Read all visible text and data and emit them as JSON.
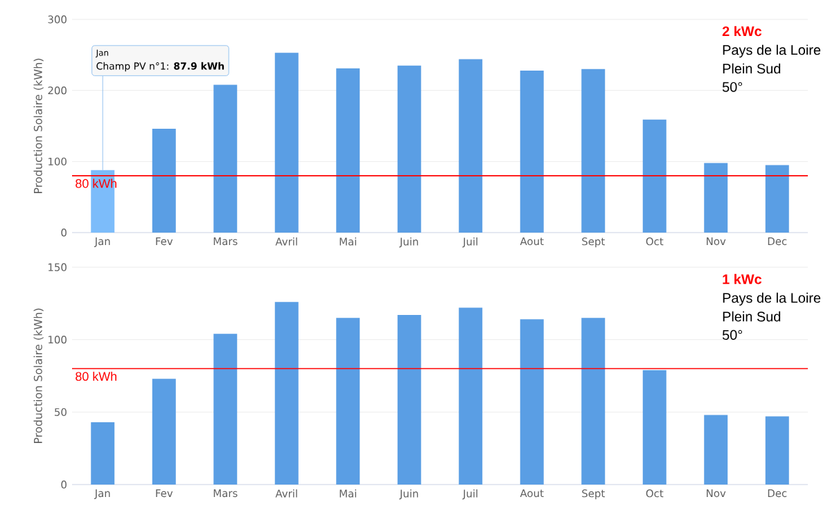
{
  "chart_data": [
    {
      "type": "bar",
      "ylabel": "Production Solaire (kWh)",
      "categories": [
        "Jan",
        "Fev",
        "Mars",
        "Avril",
        "Mai",
        "Juin",
        "Juil",
        "Aout",
        "Sept",
        "Oct",
        "Nov",
        "Dec"
      ],
      "values": [
        87.9,
        146,
        208,
        253,
        231,
        235,
        244,
        228,
        230,
        159,
        98,
        95
      ],
      "colors": [
        "#7cbcfa",
        "#5a9ee4",
        "#5a9ee4",
        "#5a9ee4",
        "#5a9ee4",
        "#5a9ee4",
        "#5a9ee4",
        "#5a9ee4",
        "#5a9ee4",
        "#5a9ee4",
        "#5a9ee4",
        "#5a9ee4"
      ],
      "ylim": [
        0,
        300
      ],
      "yticks": [
        0,
        100,
        200,
        300
      ],
      "grid": "y",
      "ref_lines": [
        {
          "axis": "y",
          "value": 80,
          "label": "80 kWh",
          "color": "#ff0000"
        }
      ],
      "annotations": [
        "**2 kWc**",
        "Pays de la Loire",
        "Plein Sud",
        "50°",
        {
          "text": "Champ PV n°1: **87.9 kWh**",
          "x": "Jan",
          "y": 87.9
        }
      ]
    },
    {
      "type": "bar",
      "ylabel": "Production Solaire (kWh)",
      "categories": [
        "Jan",
        "Fev",
        "Mars",
        "Avril",
        "Mai",
        "Juin",
        "Juil",
        "Aout",
        "Sept",
        "Oct",
        "Nov",
        "Dec"
      ],
      "values": [
        43,
        73,
        104,
        126,
        115,
        117,
        122,
        114,
        115,
        79,
        48,
        47
      ],
      "color": "#5a9ee4",
      "ylim": [
        0,
        150
      ],
      "yticks": [
        0,
        50,
        100,
        150
      ],
      "grid": "y",
      "ref_lines": [
        {
          "axis": "y",
          "value": 80,
          "label": "80 kWh",
          "color": "#ff0000"
        }
      ],
      "annotations": [
        "**1 kWc**",
        "Pays de la Loire",
        "Plein Sud",
        "50°"
      ]
    }
  ]
}
